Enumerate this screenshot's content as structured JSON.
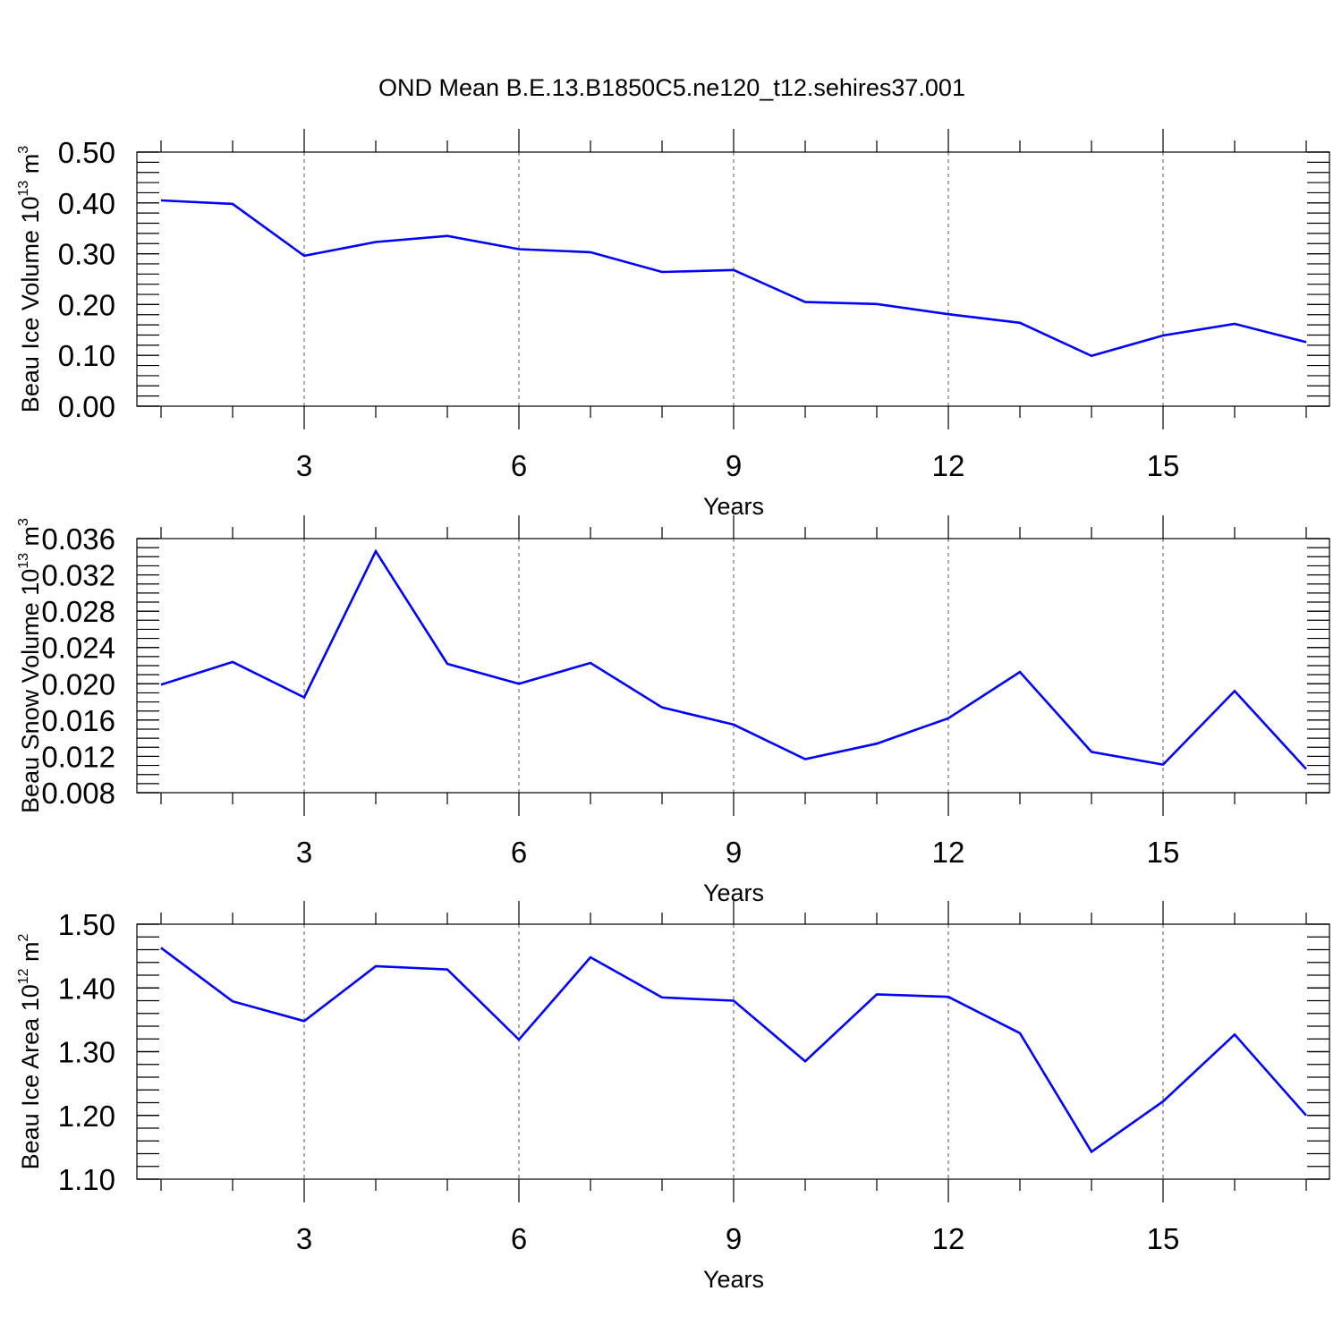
{
  "title": "OND Mean B.E.13.B1850C5.ne120_t12.sehires37.001",
  "colors": {
    "line": "#0000ff",
    "grid": "#555555",
    "axes": "#000000"
  },
  "chart_data": [
    {
      "type": "line",
      "name": "ice-volume",
      "ylabel": "Beau Ice Volume 10",
      "ylabel_sup": "13",
      "ylabel_unit": " m",
      "ylabel_unit_sup": "3",
      "xlabel": "Years",
      "xlim": [
        1,
        17
      ],
      "ylim": [
        0.0,
        0.5
      ],
      "xticks": [
        3,
        6,
        9,
        12,
        15
      ],
      "xtick_labels": [
        "3",
        "6",
        "9",
        "12",
        "15"
      ],
      "yticks": [
        0.0,
        0.1,
        0.2,
        0.3,
        0.4,
        0.5
      ],
      "ytick_labels": [
        "0.00",
        "0.10",
        "0.20",
        "0.30",
        "0.40",
        "0.50"
      ],
      "y_minor_step": 0.02,
      "x": [
        1,
        2,
        3,
        4,
        5,
        6,
        7,
        8,
        9,
        10,
        11,
        12,
        13,
        14,
        15,
        16,
        17
      ],
      "values": [
        0.405,
        0.398,
        0.296,
        0.323,
        0.335,
        0.309,
        0.303,
        0.264,
        0.268,
        0.205,
        0.201,
        0.181,
        0.164,
        0.099,
        0.139,
        0.162,
        0.126
      ]
    },
    {
      "type": "line",
      "name": "snow-volume",
      "ylabel": "Beau Snow Volume 10",
      "ylabel_sup": "13",
      "ylabel_unit": " m",
      "ylabel_unit_sup": "3",
      "xlabel": "Years",
      "xlim": [
        1,
        17
      ],
      "ylim": [
        0.008,
        0.036
      ],
      "xticks": [
        3,
        6,
        9,
        12,
        15
      ],
      "xtick_labels": [
        "3",
        "6",
        "9",
        "12",
        "15"
      ],
      "yticks": [
        0.008,
        0.012,
        0.016,
        0.02,
        0.024,
        0.028,
        0.032,
        0.036
      ],
      "ytick_labels": [
        "0.008",
        "0.012",
        "0.016",
        "0.020",
        "0.024",
        "0.028",
        "0.032",
        "0.036"
      ],
      "y_minor_step": 0.001,
      "x": [
        1,
        2,
        3,
        4,
        5,
        6,
        7,
        8,
        9,
        10,
        11,
        12,
        13,
        14,
        15,
        16,
        17
      ],
      "values": [
        0.0199,
        0.0224,
        0.0185,
        0.0346,
        0.0222,
        0.02,
        0.0223,
        0.0174,
        0.0155,
        0.0117,
        0.0134,
        0.0162,
        0.0213,
        0.0125,
        0.0111,
        0.0192,
        0.0106
      ]
    },
    {
      "type": "line",
      "name": "ice-area",
      "ylabel": "Beau Ice Area 10",
      "ylabel_sup": "12",
      "ylabel_unit": " m",
      "ylabel_unit_sup": "2",
      "xlabel": "Years",
      "xlim": [
        1,
        17
      ],
      "ylim": [
        1.1,
        1.5
      ],
      "xticks": [
        3,
        6,
        9,
        12,
        15
      ],
      "xtick_labels": [
        "3",
        "6",
        "9",
        "12",
        "15"
      ],
      "yticks": [
        1.1,
        1.2,
        1.3,
        1.4,
        1.5
      ],
      "ytick_labels": [
        "1.10",
        "1.20",
        "1.30",
        "1.40",
        "1.50"
      ],
      "y_minor_step": 0.02,
      "x": [
        1,
        2,
        3,
        4,
        5,
        6,
        7,
        8,
        9,
        10,
        11,
        12,
        13,
        14,
        15,
        16,
        17
      ],
      "values": [
        1.463,
        1.379,
        1.348,
        1.434,
        1.429,
        1.319,
        1.448,
        1.385,
        1.38,
        1.285,
        1.39,
        1.386,
        1.329,
        1.143,
        1.222,
        1.327,
        1.2
      ]
    }
  ]
}
